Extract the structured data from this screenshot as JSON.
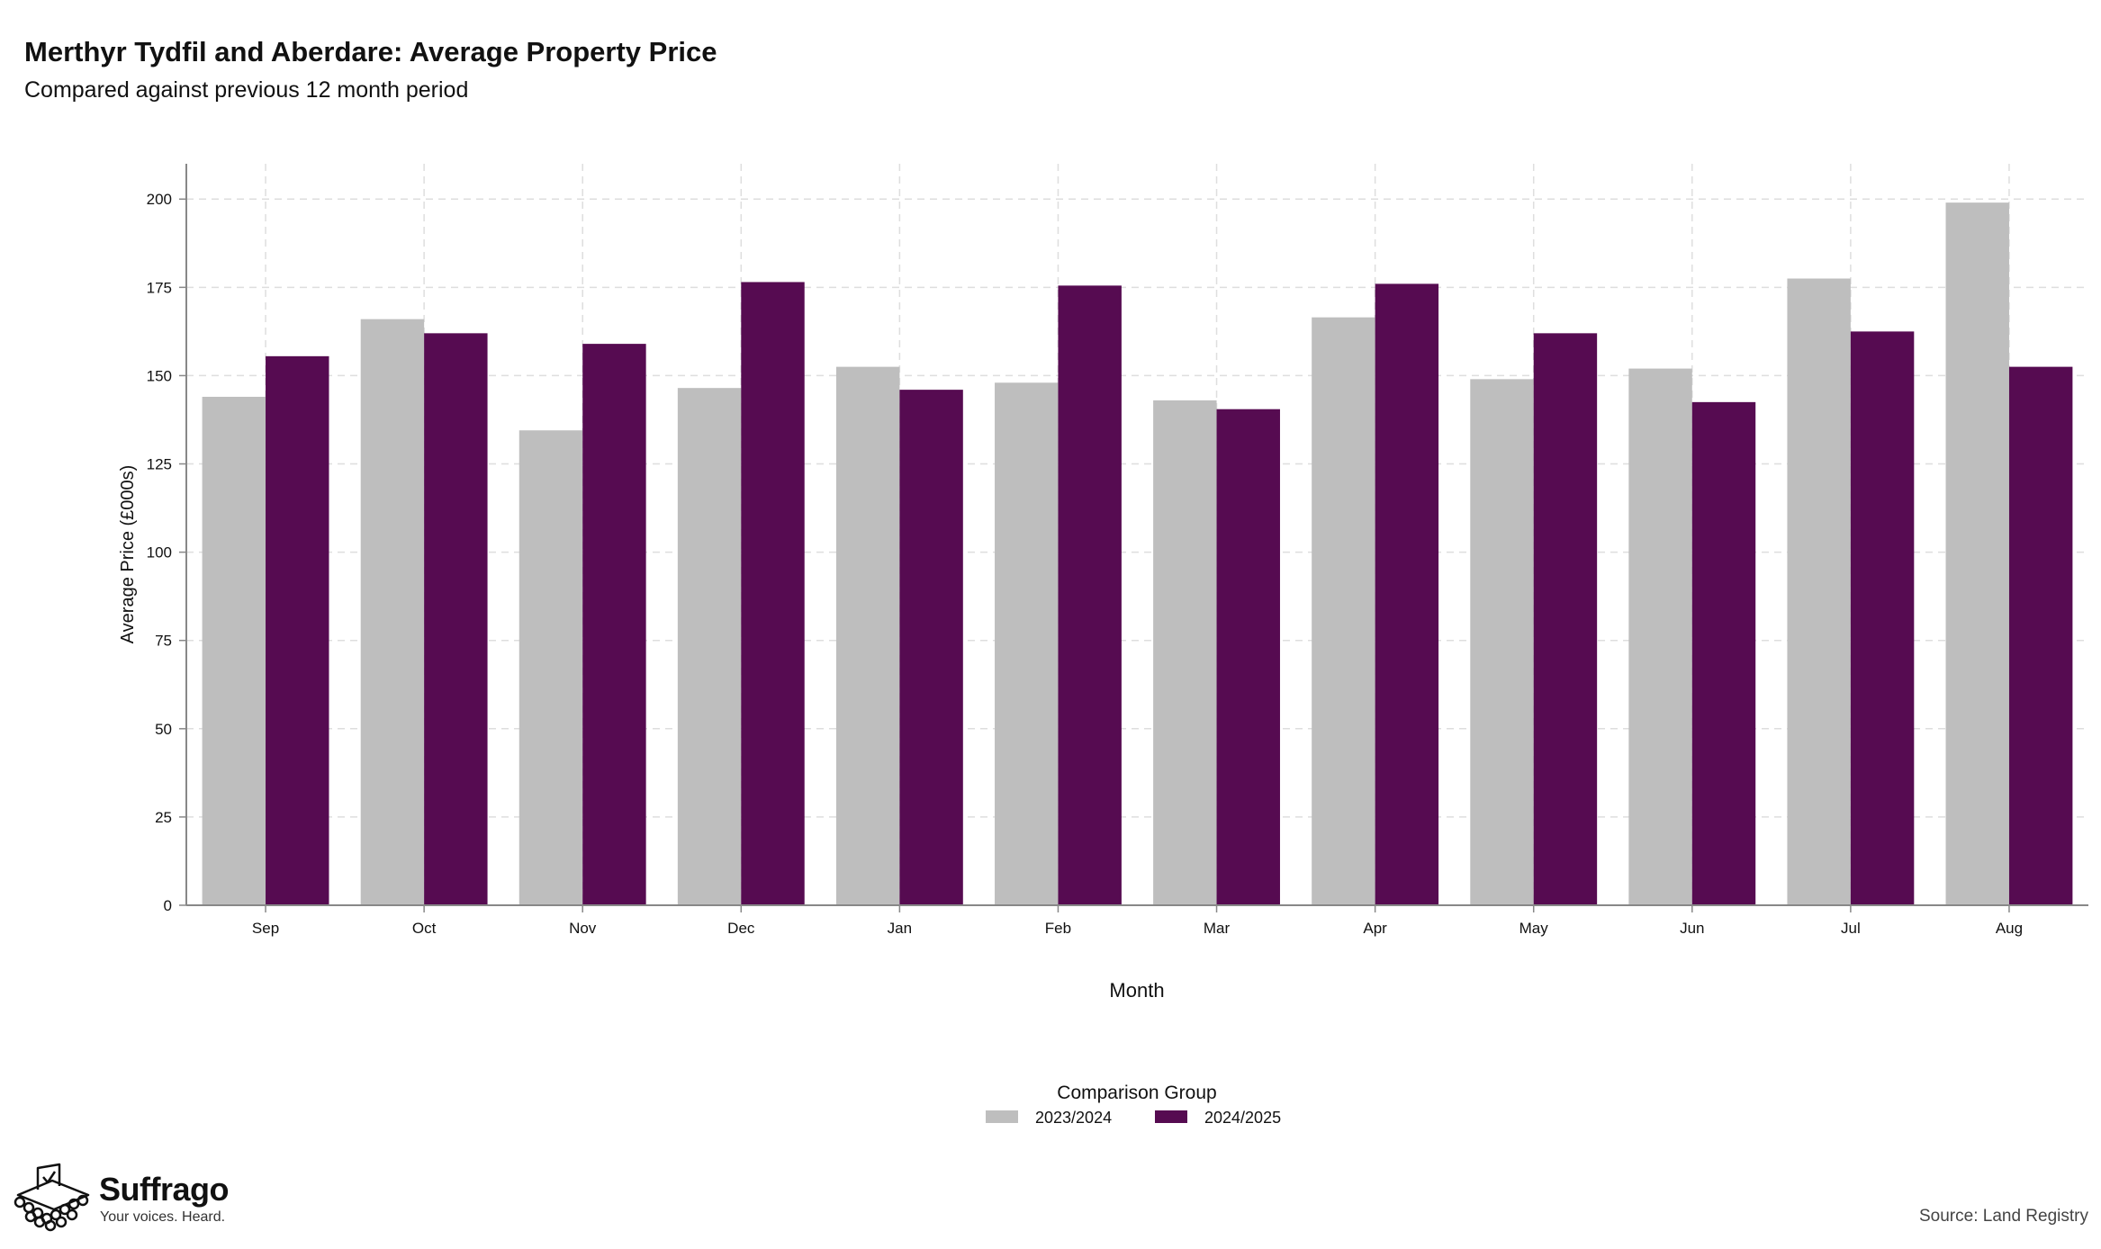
{
  "header": {
    "title": "Merthyr Tydfil and Aberdare: Average Property Price",
    "subtitle": "Compared against previous 12 month period"
  },
  "chart_data": {
    "type": "bar",
    "title": "Merthyr Tydfil and Aberdare: Average Property Price",
    "subtitle": "Compared against previous 12 month period",
    "xlabel": "Month",
    "ylabel": "Average Price (£000s)",
    "ylim": [
      0,
      210
    ],
    "yticks": [
      0,
      25,
      50,
      75,
      100,
      125,
      150,
      175,
      200
    ],
    "grid": true,
    "categories": [
      "Sep",
      "Oct",
      "Nov",
      "Dec",
      "Jan",
      "Feb",
      "Mar",
      "Apr",
      "May",
      "Jun",
      "Jul",
      "Aug"
    ],
    "series": [
      {
        "name": "2023/2024",
        "color": "#bebebe",
        "values": [
          144,
          166,
          134.5,
          146.5,
          152.5,
          148,
          143,
          166.5,
          149,
          152,
          177.5,
          199
        ]
      },
      {
        "name": "2024/2025",
        "color": "#560b51",
        "values": [
          155.5,
          162,
          159,
          176.5,
          146,
          175.5,
          140.5,
          176,
          162,
          142.5,
          162.5,
          152.5
        ]
      }
    ],
    "legend": {
      "title": "Comparison Group",
      "placement": "bottom-center"
    }
  },
  "footer": {
    "brand_name": "Suffrago",
    "brand_tagline": "Your voices. Heard.",
    "source": "Source: Land Registry",
    "logo_icon": "ballot-box-icon"
  }
}
